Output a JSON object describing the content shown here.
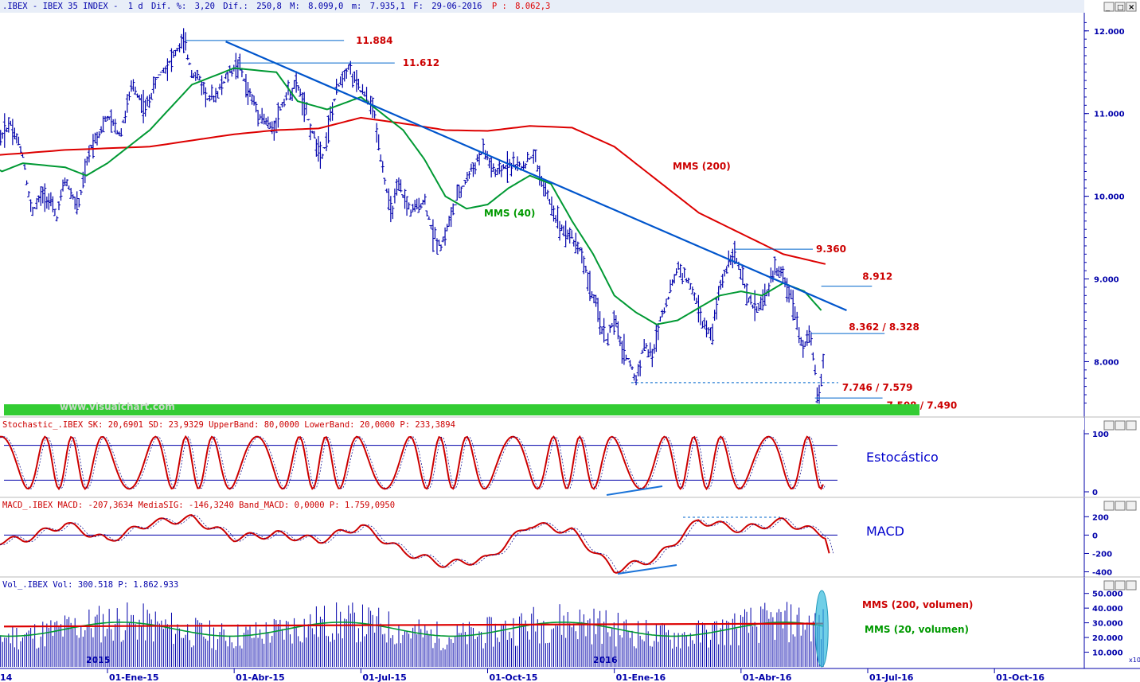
{
  "chart_data": [
    {
      "type": "line",
      "header": {
        "symbol": ".IBEX - IBEX 35 INDEX -",
        "interval": "1 d",
        "dif_pct_label": "Dif. %:",
        "dif_pct": "3,20",
        "dif_label": "Dif.:",
        "dif": "250,8",
        "max_label": "M:",
        "max": "8.099,0",
        "min_label": "m:",
        "min": "7.935,1",
        "date_label": "F:",
        "date": "29-06-2016",
        "price_label": "P :",
        "price": "8.062,3"
      },
      "y_ticks": [
        "12.000",
        "11.000",
        "10.000",
        "9.000",
        "8.000"
      ],
      "y_tick_values": [
        12000,
        11000,
        10000,
        9000,
        8000
      ],
      "ylim": [
        7350,
        12200
      ],
      "x_ticks": [
        "01-Ene-15",
        "01-Abr-15",
        "01-Jul-15",
        "01-Oct-15",
        "01-Ene-16",
        "01-Abr-16",
        "01-Jul-16",
        "01-Oct-16"
      ],
      "x_tick_months": [
        1,
        4,
        7,
        10,
        13,
        16,
        19,
        22
      ],
      "x_left_partial": "14",
      "year_labels": [
        "2015",
        "2016"
      ],
      "x_month_range": [
        -2.15,
        24.6
      ],
      "price_path": [
        [
          -2.15,
          10480
        ],
        [
          -1.9,
          10200
        ],
        [
          -1.6,
          10650
        ],
        [
          -1.3,
          10900
        ],
        [
          -1.0,
          10500
        ],
        [
          -0.8,
          9800
        ],
        [
          -0.5,
          10050
        ],
        [
          -0.2,
          9750
        ],
        [
          0.0,
          10200
        ],
        [
          0.3,
          9850
        ],
        [
          0.6,
          10600
        ],
        [
          1.0,
          10950
        ],
        [
          1.3,
          10750
        ],
        [
          1.6,
          11350
        ],
        [
          1.9,
          11050
        ],
        [
          2.2,
          11450
        ],
        [
          2.5,
          11650
        ],
        [
          2.8,
          11880
        ],
        [
          3.0,
          11500
        ],
        [
          3.2,
          11400
        ],
        [
          3.4,
          11150
        ],
        [
          3.6,
          11250
        ],
        [
          3.9,
          11500
        ],
        [
          4.1,
          11610
        ],
        [
          4.3,
          11300
        ],
        [
          4.6,
          11000
        ],
        [
          4.9,
          10800
        ],
        [
          5.2,
          11200
        ],
        [
          5.5,
          11350
        ],
        [
          5.7,
          11000
        ],
        [
          5.9,
          10700
        ],
        [
          6.1,
          10500
        ],
        [
          6.3,
          11000
        ],
        [
          6.5,
          11400
        ],
        [
          6.7,
          11580
        ],
        [
          6.9,
          11350
        ],
        [
          7.1,
          11200
        ],
        [
          7.3,
          11050
        ],
        [
          7.5,
          10400
        ],
        [
          7.7,
          9800
        ],
        [
          7.9,
          10100
        ],
        [
          8.2,
          9800
        ],
        [
          8.5,
          9950
        ],
        [
          8.7,
          9550
        ],
        [
          8.9,
          9400
        ],
        [
          9.1,
          9700
        ],
        [
          9.3,
          10000
        ],
        [
          9.6,
          10300
        ],
        [
          9.9,
          10550
        ],
        [
          10.2,
          10250
        ],
        [
          10.5,
          10400
        ],
        [
          10.8,
          10350
        ],
        [
          11.1,
          10500
        ],
        [
          11.3,
          10150
        ],
        [
          11.5,
          9900
        ],
        [
          11.7,
          9650
        ],
        [
          12.0,
          9500
        ],
        [
          12.2,
          9350
        ],
        [
          12.4,
          8950
        ],
        [
          12.6,
          8600
        ],
        [
          12.8,
          8250
        ],
        [
          13.0,
          8500
        ],
        [
          13.2,
          8150
        ],
        [
          13.4,
          7950
        ],
        [
          13.5,
          7750
        ],
        [
          13.7,
          8200
        ],
        [
          13.9,
          8050
        ],
        [
          14.1,
          8550
        ],
        [
          14.3,
          8800
        ],
        [
          14.5,
          9150
        ],
        [
          14.7,
          9000
        ],
        [
          14.9,
          8800
        ],
        [
          15.1,
          8450
        ],
        [
          15.3,
          8300
        ],
        [
          15.5,
          8900
        ],
        [
          15.7,
          9200
        ],
        [
          15.8,
          9360
        ],
        [
          16.0,
          9050
        ],
        [
          16.2,
          8700
        ],
        [
          16.4,
          8650
        ],
        [
          16.6,
          8800
        ],
        [
          16.8,
          9150
        ],
        [
          17.0,
          9000
        ],
        [
          17.2,
          8800
        ],
        [
          17.3,
          8550
        ],
        [
          17.4,
          8300
        ],
        [
          17.5,
          8150
        ],
        [
          17.6,
          8360
        ],
        [
          17.7,
          8100
        ],
        [
          17.8,
          7650
        ],
        [
          17.85,
          7580
        ],
        [
          17.95,
          8062
        ]
      ],
      "series": [
        {
          "name": "MMS (200)",
          "color": "#dd0000",
          "points": [
            [
              -2.15,
              10480
            ],
            [
              -1,
              10520
            ],
            [
              0,
              10560
            ],
            [
              2,
              10600
            ],
            [
              4,
              10750
            ],
            [
              5,
              10800
            ],
            [
              6,
              10820
            ],
            [
              7,
              10950
            ],
            [
              8,
              10880
            ],
            [
              9,
              10800
            ],
            [
              10,
              10790
            ],
            [
              11,
              10850
            ],
            [
              12,
              10830
            ],
            [
              13,
              10600
            ],
            [
              14,
              10200
            ],
            [
              15,
              9800
            ],
            [
              16,
              9550
            ],
            [
              17,
              9300
            ],
            [
              18,
              9180
            ]
          ]
        },
        {
          "name": "MMS (40)",
          "color": "#009933",
          "points": [
            [
              -2.15,
              10500
            ],
            [
              -1.5,
              10300
            ],
            [
              -1,
              10400
            ],
            [
              0,
              10350
            ],
            [
              0.5,
              10250
            ],
            [
              1,
              10400
            ],
            [
              2,
              10800
            ],
            [
              3,
              11350
            ],
            [
              4,
              11550
            ],
            [
              5,
              11500
            ],
            [
              5.5,
              11150
            ],
            [
              6.2,
              11050
            ],
            [
              7,
              11200
            ],
            [
              7.5,
              11000
            ],
            [
              8,
              10800
            ],
            [
              8.5,
              10450
            ],
            [
              9,
              10000
            ],
            [
              9.5,
              9850
            ],
            [
              10,
              9900
            ],
            [
              10.5,
              10100
            ],
            [
              11,
              10250
            ],
            [
              11.5,
              10150
            ],
            [
              12,
              9700
            ],
            [
              12.5,
              9300
            ],
            [
              13,
              8800
            ],
            [
              13.5,
              8600
            ],
            [
              14,
              8450
            ],
            [
              14.5,
              8500
            ],
            [
              15,
              8650
            ],
            [
              15.5,
              8800
            ],
            [
              16,
              8850
            ],
            [
              16.5,
              8800
            ],
            [
              17,
              8950
            ],
            [
              17.5,
              8850
            ],
            [
              17.9,
              8620
            ]
          ]
        }
      ],
      "trendline": {
        "color": "#0055cc",
        "from": [
          3.8,
          11870
        ],
        "to": [
          18.5,
          8620
        ]
      },
      "levels": [
        {
          "label": "11.884",
          "value": 11884,
          "from": 2.85,
          "to": 6.6
        },
        {
          "label": "11.612",
          "value": 11612,
          "from": 4.1,
          "to": 7.8
        },
        {
          "label": "9.360",
          "value": 9360,
          "from": 15.85,
          "to": 17.7
        },
        {
          "label": "8.912",
          "value": 8912,
          "from": 17.9,
          "to": 19.1
        },
        {
          "label": "8.362 / 8.328",
          "value": 8340,
          "from": 17.65,
          "to": 19.4
        },
        {
          "label": "7.746 / 7.579",
          "value": 7746,
          "from": 13.4,
          "to": 18.3,
          "dashed": true
        },
        {
          "label": "7.508 / 7.490",
          "value": 7560,
          "from": 17.75,
          "to": 19.35
        }
      ],
      "annotations": {
        "mms200": "MMS (200)",
        "mms40": "MMS (40)"
      },
      "watermark": "www.visualchart.com"
    },
    {
      "type": "line",
      "header": "Stochastic_.IBEX SK: 20,6901 SD: 23,9329 UpperBand: 80,0000 LowerBand: 20,0000 P: 233,3894",
      "label": "Estocástico",
      "y_ticks": [
        "100",
        "0"
      ],
      "bands": [
        80,
        20
      ],
      "ylim": [
        0,
        100
      ]
    },
    {
      "type": "line",
      "header": "MACD_.IBEX MACD: -207,3634 MediaSIG: -146,3240 Band_MACD: 0,0000 P: 1.759,0950",
      "label": "MACD",
      "y_ticks": [
        "200",
        "0",
        "-200",
        "-400"
      ],
      "y_tick_values": [
        200,
        0,
        -200,
        -400
      ],
      "ylim": [
        -430,
        220
      ]
    },
    {
      "type": "bar",
      "header": "Vol_.IBEX Vol: 300.518 P: 1.862.933",
      "y_ticks": [
        "50.000",
        "40.000",
        "30.000",
        "20.000",
        "10.000"
      ],
      "y_tick_values": [
        50000,
        40000,
        30000,
        20000,
        10000
      ],
      "ylim": [
        0,
        52000
      ],
      "unit_label": "x10",
      "series": [
        {
          "name": "MMS (200, volumen)",
          "color": "#dd0000"
        },
        {
          "name": "MMS (20, volumen)",
          "color": "#009933"
        }
      ]
    }
  ]
}
